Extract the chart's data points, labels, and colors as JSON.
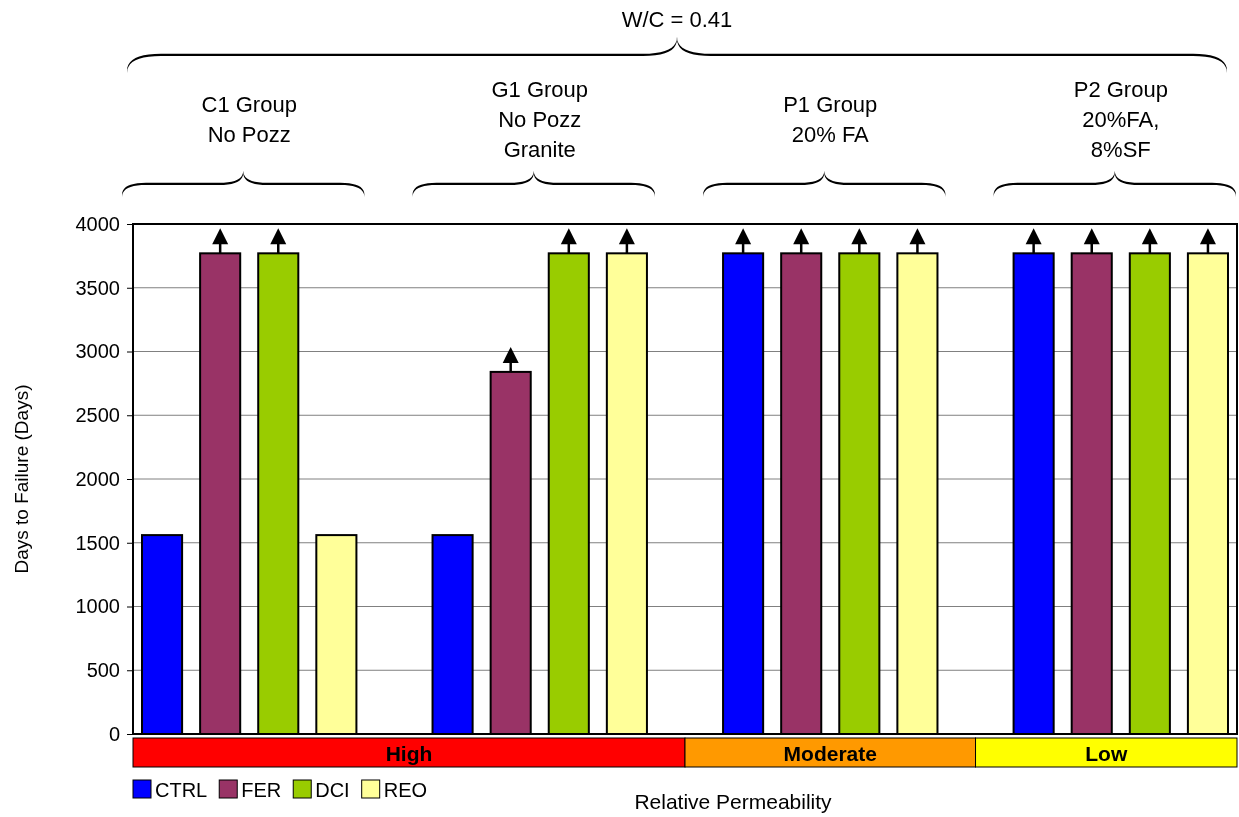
{
  "chart_data": {
    "type": "bar",
    "title": "W/C = 0.41",
    "ylabel": "Days to Failure (Days)",
    "xlabel": "Relative Permeability",
    "categories": [
      "C1 Group\nNo Pozz",
      "G1 Group\nNo Pozz\nGranite",
      "P1 Group\n20% FA",
      "P2 Group\n20%FA,\n8%SF"
    ],
    "series": [
      {
        "name": "CTRL",
        "color": "#0000ff",
        "values": [
          1560,
          1560,
          3770,
          3770
        ]
      },
      {
        "name": "FER",
        "color": "#993366",
        "values": [
          3770,
          2840,
          3770,
          3770
        ]
      },
      {
        "name": "DCI",
        "color": "#99cc00",
        "values": [
          3770,
          3770,
          3770,
          3770
        ]
      },
      {
        "name": "REO",
        "color": "#ffff99",
        "values": [
          1560,
          3770,
          3770,
          3770
        ]
      }
    ],
    "ylim": [
      0,
      4000
    ],
    "yticks": [
      0,
      500,
      1000,
      1500,
      2000,
      2500,
      3000,
      3500,
      4000
    ],
    "grid": "y",
    "legend": "bottom left",
    "annotations": [
      "High",
      "Moderate",
      "Low"
    ]
  }
}
